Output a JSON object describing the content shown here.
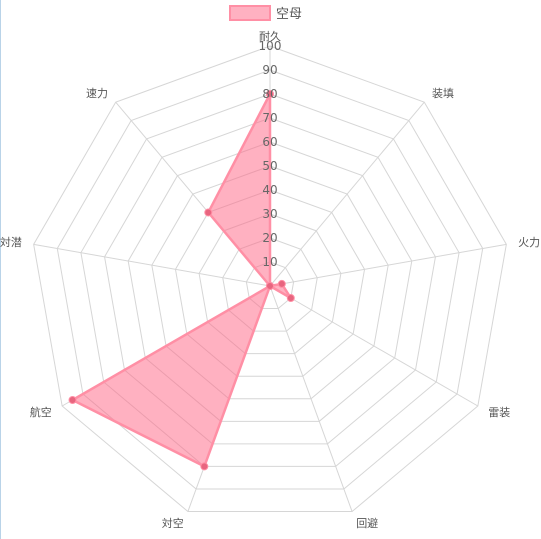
{
  "chart_data": {
    "type": "radar",
    "axes": [
      "耐久",
      "装填",
      "火力",
      "雷装",
      "回避",
      "対空",
      "航空",
      "対潜",
      "速力"
    ],
    "ticks": [
      10,
      20,
      30,
      40,
      50,
      60,
      70,
      80,
      90,
      100
    ],
    "range": [
      0,
      100
    ],
    "legend_position": "top",
    "series": [
      {
        "name": "空母",
        "values": [
          80,
          0,
          5,
          10,
          0,
          80,
          95,
          0,
          40
        ]
      }
    ]
  },
  "colors": {
    "series_fill": "rgba(255,99,132,0.5)",
    "series_stroke": "#ff8fa5",
    "point": "#e8657f",
    "grid": "#d6d6d6"
  }
}
